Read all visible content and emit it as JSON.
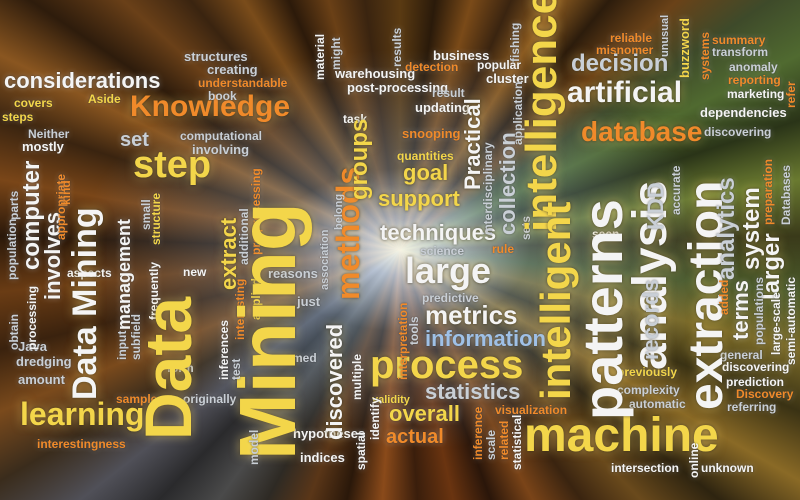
{
  "words": {
    "considerations": "considerations",
    "structures": "structures",
    "creating": "creating",
    "understandable": "understandable",
    "material": "material",
    "might": "might",
    "warehousing": "warehousing",
    "post_processing": "post-processing",
    "results": "results",
    "business": "business",
    "detection": "detection",
    "popular": "popular",
    "cluster": "cluster",
    "fishing": "fishing",
    "reliable": "reliable",
    "misnomer": "misnomer",
    "unusual": "unusual",
    "buzzword": "buzzword",
    "summary": "summary",
    "transform": "transform",
    "systems": "systems",
    "anomaly": "anomaly",
    "reporting": "reporting",
    "refer": "refer",
    "marketing": "marketing",
    "dependencies": "dependencies",
    "covers": "covers",
    "steps": "steps",
    "aside": "Aside",
    "knowledge": "Knowledge",
    "book": "book",
    "updating": "updating",
    "result": "result",
    "task": "task",
    "snooping": "snooping",
    "neither": "Neither",
    "mostly": "mostly",
    "set": "set",
    "computational": "computational",
    "involving": "involving",
    "quantities": "quantities",
    "decision": "decision",
    "artificial": "artificial",
    "database": "database",
    "discovering": "discovering",
    "step": "step",
    "goal": "goal",
    "support": "support",
    "techniques": "techniques",
    "science": "science",
    "rule": "rule",
    "seen": "seen",
    "large": "large",
    "metrics": "metrics",
    "information": "information",
    "process": "process",
    "statistics": "statistics",
    "overall": "overall",
    "actual": "actual",
    "machine": "machine",
    "learning": "learning",
    "interestingness": "interestingness",
    "hypotheses": "hypotheses",
    "indices": "indices",
    "data_mining": "Data Mining",
    "data": "Data",
    "mining": "Mining",
    "computer": "computer",
    "involves": "involves",
    "population": "population",
    "obtain": "obtain",
    "processing": "processing",
    "parts": "parts",
    "appropriate": "appropriate",
    "kind": "kind",
    "management": "management",
    "input": "input",
    "subfield": "subfield",
    "small": "small",
    "frequently": "frequently",
    "structure": "structure",
    "extract": "extract",
    "additional": "additional",
    "interesting": "interesting",
    "applied": "applied",
    "pre_processing": "pre-processing",
    "new": "new",
    "reasons": "reasons",
    "just": "just",
    "named": "named",
    "sample": "sample",
    "originally": "originally",
    "form": "form",
    "java": "Java",
    "dredging": "dredging",
    "amount": "amount",
    "aspects": "aspects",
    "discovered": "discovered",
    "methods": "methods",
    "groups": "groups",
    "association": "association",
    "belong": "belong",
    "multiple": "multiple",
    "validity": "validity",
    "identify": "identify",
    "spatial": "spatial",
    "model": "model",
    "test": "test",
    "inferences": "inferences",
    "practical": "Practical",
    "interdisciplinary": "interdisciplinary",
    "collection": "collection",
    "application": "application",
    "sets": "sets",
    "interpretation": "interpretation",
    "tools": "tools",
    "predictive": "predictive",
    "inference": "inference",
    "scale": "scale",
    "related": "related",
    "statistical": "statistical",
    "visualization": "visualization",
    "intelligence": "intelligence",
    "intelligent": "intelligent",
    "patterns": "patterns",
    "analysis": "analysis",
    "records": "records",
    "kdd": "KDD",
    "accurate": "accurate",
    "extraction": "extraction",
    "analytics": "analytics",
    "system": "system",
    "preparation": "preparation",
    "databases": "Databases",
    "larger": "larger",
    "terms": "terms",
    "populations": "populations",
    "added": "added",
    "large_scale": "large-scale",
    "semi_automatic": "semi-automatic",
    "general": "general",
    "previously": "previously",
    "complexity": "complexity",
    "automatic": "automatic",
    "prediction": "prediction",
    "discovery": "Discovery",
    "referring": "referring",
    "intersection": "intersection",
    "online": "online",
    "unknown": "unknown"
  }
}
